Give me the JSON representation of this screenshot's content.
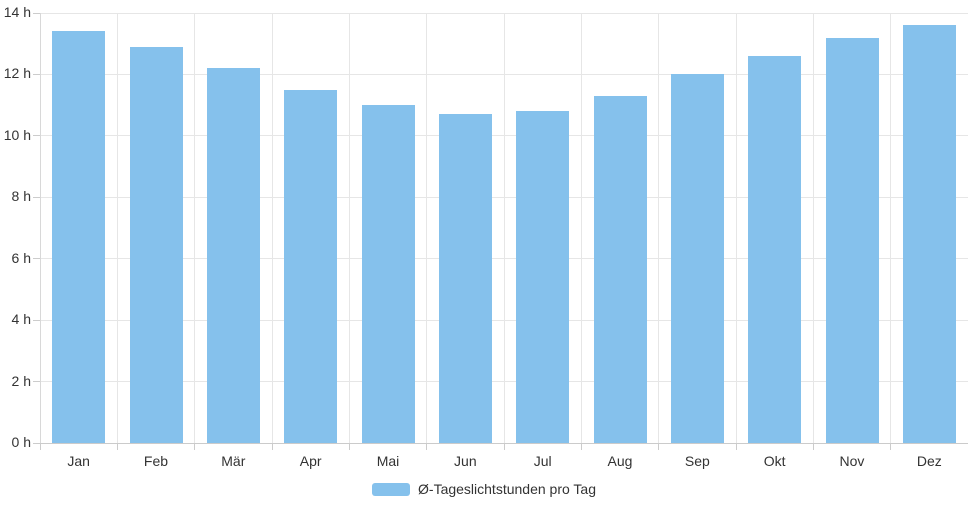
{
  "chart_data": {
    "type": "bar",
    "title": "",
    "xlabel": "",
    "ylabel": "",
    "categories": [
      "Jan",
      "Feb",
      "Mär",
      "Apr",
      "Mai",
      "Jun",
      "Jul",
      "Aug",
      "Sep",
      "Okt",
      "Nov",
      "Dez"
    ],
    "series": [
      {
        "name": "Ø-Tageslichtstunden pro Tag",
        "values": [
          13.4,
          12.9,
          12.2,
          11.5,
          11.0,
          10.7,
          10.8,
          11.3,
          12.0,
          12.6,
          13.2,
          13.6
        ]
      }
    ],
    "ylim": [
      0,
      14
    ],
    "ytick_step": 2,
    "ytick_labels": [
      "0 h",
      "2 h",
      "4 h",
      "6 h",
      "8 h",
      "10 h",
      "12 h",
      "14 h"
    ],
    "grid": true,
    "legend_position": "bottom-center"
  },
  "legend": {
    "label": "Ø-Tageslichtstunden pro Tag"
  },
  "colors": {
    "bar": "#85C1EC",
    "grid": "#E6E6E6",
    "axis_line": "#CBCBCB",
    "tick": "#CCCCCC",
    "text": "#333333",
    "background": "#FFFFFF"
  }
}
